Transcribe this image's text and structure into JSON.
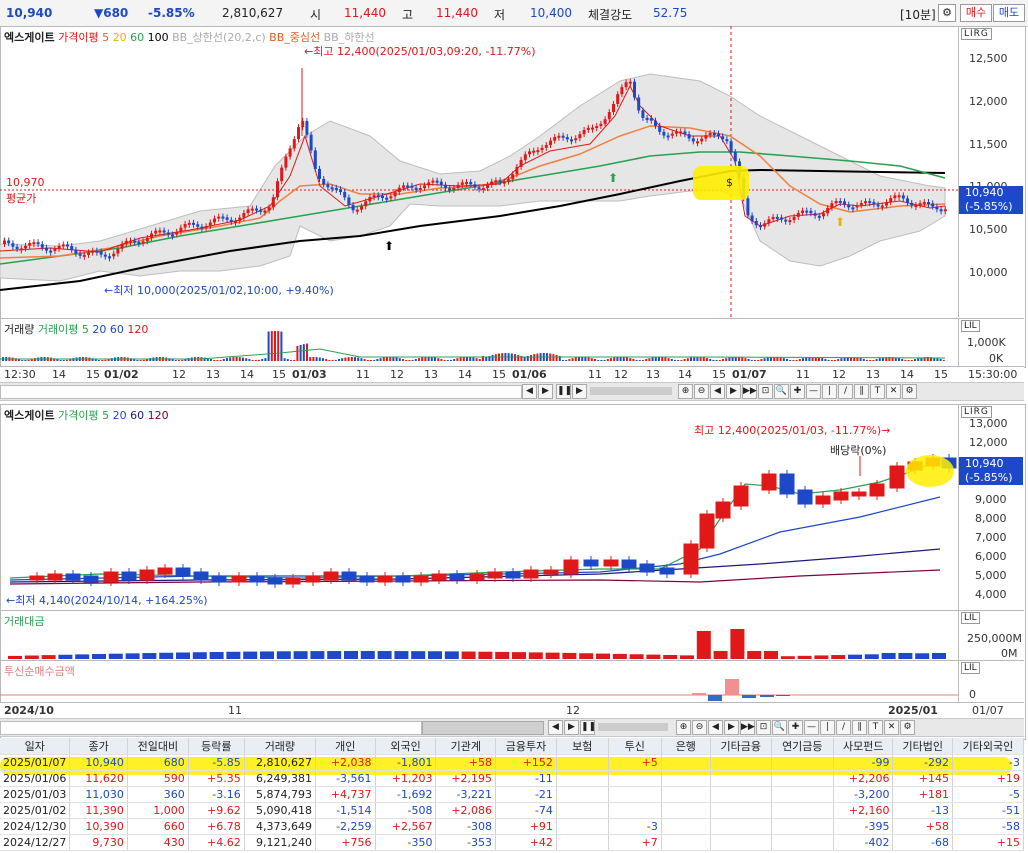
{
  "top": {
    "price": "10,940",
    "change": "▼680",
    "change_pct": "-5.85%",
    "volume": "2,810,627",
    "open_label": "시",
    "open": "11,440",
    "high_label": "고",
    "high": "11,440",
    "low_label": "저",
    "low": "10,400",
    "strength_label": "체결강도",
    "strength": "52.75",
    "interval": "[10분]",
    "buy_label": "매수",
    "sell_label": "매도"
  },
  "chart1": {
    "name": "엑스게이트",
    "legend": {
      "ma_title": "가격이평",
      "ma1": "5",
      "ma2": "20",
      "ma3": "60",
      "ma4": "100",
      "bb_upper": "BB_상한선(20,2,c)",
      "bb_mid": "BB_중심선",
      "bb_lower": "BB_하한선"
    },
    "high_note": "←최고 12,400(2025/01/03,09:20, -11.77%)",
    "low_note": "←최저 10,000(2025/01/02,10:00, +9.40%)",
    "avg_value": "10,970",
    "avg_label": "평균가",
    "yticks": [
      "12,500",
      "12,000",
      "11,500",
      "11,000",
      "10,500",
      "10,000"
    ],
    "current_price": "10,940",
    "current_pct": "(-5.85%)",
    "toolbar_label": "LIRG",
    "volume_panel": {
      "title": "거래량",
      "ma_title": "거래이평",
      "ma1": "5",
      "ma2": "20",
      "ma3": "60",
      "ma4": "120",
      "yticks": [
        "1,000K",
        "0K"
      ],
      "toolbar_label": "LIL"
    },
    "xticks": [
      "12:30",
      "14",
      "15",
      "01/02",
      "12",
      "13",
      "14",
      "15",
      "01/03",
      "11",
      "12",
      "13",
      "14",
      "15",
      "01/06",
      "11",
      "12",
      "13",
      "14",
      "15",
      "01/07",
      "11",
      "12",
      "13",
      "14",
      "15"
    ],
    "time_label": "15:30:00"
  },
  "chart2": {
    "name": "엑스게이트",
    "legend": {
      "ma_title": "가격이평",
      "ma1": "5",
      "ma2": "20",
      "ma3": "60",
      "ma4": "120"
    },
    "high_note": "최고 12,400(2025/01/03, -11.77%)→",
    "low_note": "←최저 4,140(2024/10/14, +164.25%)",
    "dividend_note": "배당락(0%)",
    "yticks": [
      "13,000",
      "12,000",
      "11,000",
      "10,000",
      "9,000",
      "8,000",
      "7,000",
      "6,000",
      "5,000",
      "4,000"
    ],
    "current_price": "10,940",
    "current_pct": "(-5.85%)",
    "toolbar_label": "LIRG",
    "amount_panel": {
      "title": "거래대금",
      "yticks": [
        "250,000M",
        "0M"
      ],
      "toolbar_label": "LIL"
    },
    "trust_panel": {
      "title": "투신순매수금액",
      "yticks": [
        "0"
      ],
      "toolbar_label": "LIL"
    },
    "xticks": [
      "2024/10",
      "11",
      "12",
      "2025/01"
    ],
    "date_label": "01/07"
  },
  "table": {
    "headers": [
      "일자",
      "종가",
      "전일대비",
      "등락률",
      "거래량",
      "개인",
      "외국인",
      "기관계",
      "금융투자",
      "보험",
      "투신",
      "은행",
      "기타금융",
      "연기금등",
      "사모펀드",
      "기타법인",
      "기타외국인"
    ],
    "rows": [
      [
        "2025/01/07",
        "10,940",
        "680",
        "-5.85",
        "2,810,627",
        "+2,038",
        "-1,801",
        "+58",
        "+152",
        "",
        "+5",
        "",
        "",
        "",
        "-99",
        "-292",
        "-3"
      ],
      [
        "2025/01/06",
        "11,620",
        "590",
        "+5.35",
        "6,249,381",
        "-3,561",
        "+1,203",
        "+2,195",
        "-11",
        "",
        "",
        "",
        "",
        "",
        "+2,206",
        "+145",
        "+19"
      ],
      [
        "2025/01/03",
        "11,030",
        "360",
        "-3.16",
        "5,874,793",
        "+4,737",
        "-1,692",
        "-3,221",
        "-21",
        "",
        "",
        "",
        "",
        "",
        "-3,200",
        "+181",
        "-5"
      ],
      [
        "2025/01/02",
        "11,390",
        "1,000",
        "+9.62",
        "5,090,418",
        "-1,514",
        "-508",
        "+2,086",
        "-74",
        "",
        "",
        "",
        "",
        "",
        "+2,160",
        "-13",
        "-51"
      ],
      [
        "2024/12/30",
        "10,390",
        "660",
        "+6.78",
        "4,373,649",
        "-2,259",
        "+2,567",
        "-308",
        "+91",
        "",
        "-3",
        "",
        "",
        "",
        "-395",
        "+58",
        "-58"
      ],
      [
        "2024/12/27",
        "9,730",
        "430",
        "+4.62",
        "9,121,240",
        "+756",
        "-350",
        "-353",
        "+42",
        "",
        "+7",
        "",
        "",
        "",
        "-402",
        "-68",
        "+15"
      ]
    ]
  },
  "colors": {
    "up": "#e01818",
    "down": "#1d48c8",
    "ma5": "#e06020",
    "ma20": "#f0b000",
    "ma60": "#2aa050",
    "ma100": "#000000",
    "bb": "#c8c8c8",
    "highlight": "#ffee00"
  }
}
